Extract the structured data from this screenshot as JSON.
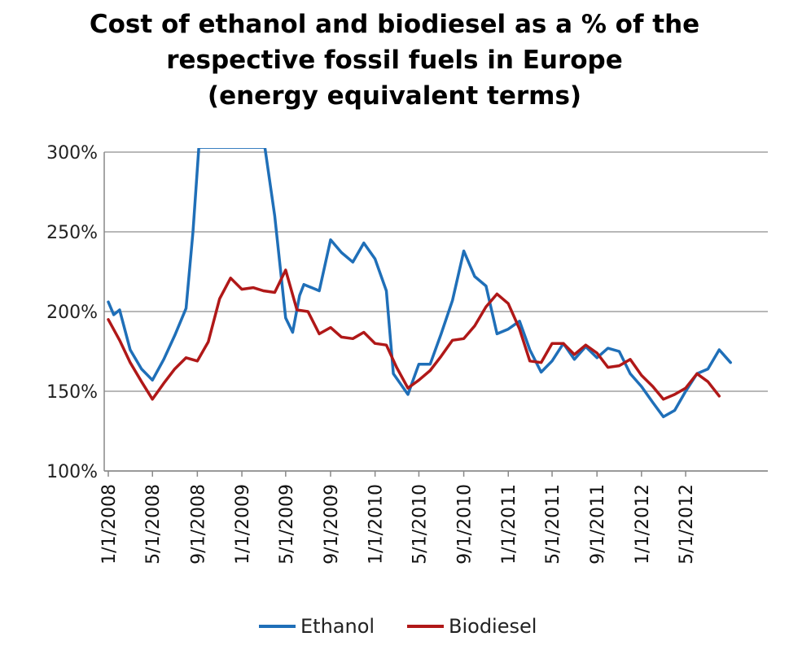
{
  "chart_data": {
    "type": "line",
    "title_lines": [
      "Cost of ethanol and biodiesel as a % of the",
      "respective fossil fuels in Europe",
      "(energy equivalent terms)"
    ],
    "xlabel": "",
    "ylabel": "",
    "ylim": [
      100,
      300
    ],
    "yticks": [
      100,
      150,
      200,
      250,
      300
    ],
    "ytick_labels": [
      "100%",
      "150%",
      "200%",
      "250%",
      "300%"
    ],
    "x_range": [
      "2008-01-01",
      "2012-12-01"
    ],
    "xticks": [
      "2008-01-01",
      "2008-05-01",
      "2008-09-01",
      "2009-01-01",
      "2009-05-01",
      "2009-09-01",
      "2010-01-01",
      "2010-05-01",
      "2010-09-01",
      "2011-01-01",
      "2011-05-01",
      "2011-09-01",
      "2012-01-01",
      "2012-05-01"
    ],
    "xtick_labels": [
      "1/1/2008",
      "5/1/2008",
      "9/1/2008",
      "1/1/2009",
      "5/1/2009",
      "9/1/2009",
      "1/1/2010",
      "5/1/2010",
      "9/1/2010",
      "1/1/2011",
      "5/1/2011",
      "9/1/2011",
      "1/1/2012",
      "5/1/2012"
    ],
    "grid": "horizontal",
    "legend_position": "bottom",
    "colors": {
      "Ethanol": "#1f6fb8",
      "Biodiesel": "#b01818",
      "grid": "#a0a0a0",
      "axis": "#888888"
    },
    "series": [
      {
        "name": "Ethanol",
        "color": "#1f6fb8",
        "points": [
          [
            "2008-01-01",
            206
          ],
          [
            "2008-01-16",
            198
          ],
          [
            "2008-02-01",
            201
          ],
          [
            "2008-03-01",
            176
          ],
          [
            "2008-04-01",
            164
          ],
          [
            "2008-05-01",
            157
          ],
          [
            "2008-06-01",
            170
          ],
          [
            "2008-07-01",
            185
          ],
          [
            "2008-08-01",
            202
          ],
          [
            "2008-08-20",
            250
          ],
          [
            "2008-09-05",
            303
          ],
          [
            "2009-03-05",
            303
          ],
          [
            "2009-04-01",
            260
          ],
          [
            "2009-05-01",
            196
          ],
          [
            "2009-05-20",
            187
          ],
          [
            "2009-06-08",
            210
          ],
          [
            "2009-06-20",
            217
          ],
          [
            "2009-08-01",
            213
          ],
          [
            "2009-09-01",
            245
          ],
          [
            "2009-10-01",
            237
          ],
          [
            "2009-11-01",
            231
          ],
          [
            "2009-12-01",
            243
          ],
          [
            "2010-01-01",
            233
          ],
          [
            "2010-02-01",
            213
          ],
          [
            "2010-02-20",
            161
          ],
          [
            "2010-04-01",
            148
          ],
          [
            "2010-05-01",
            167
          ],
          [
            "2010-06-01",
            167
          ],
          [
            "2010-07-01",
            186
          ],
          [
            "2010-08-01",
            207
          ],
          [
            "2010-09-01",
            238
          ],
          [
            "2010-10-01",
            222
          ],
          [
            "2010-11-01",
            216
          ],
          [
            "2010-12-01",
            186
          ],
          [
            "2011-01-01",
            189
          ],
          [
            "2011-02-01",
            194
          ],
          [
            "2011-03-01",
            176
          ],
          [
            "2011-04-01",
            162
          ],
          [
            "2011-05-01",
            169
          ],
          [
            "2011-06-01",
            180
          ],
          [
            "2011-07-01",
            170
          ],
          [
            "2011-08-01",
            178
          ],
          [
            "2011-09-01",
            171
          ],
          [
            "2011-10-01",
            177
          ],
          [
            "2011-11-01",
            175
          ],
          [
            "2011-12-01",
            161
          ],
          [
            "2012-01-01",
            153
          ],
          [
            "2012-02-01",
            143
          ],
          [
            "2012-03-01",
            134
          ],
          [
            "2012-04-01",
            138
          ],
          [
            "2012-05-01",
            150
          ],
          [
            "2012-06-01",
            161
          ],
          [
            "2012-07-01",
            164
          ],
          [
            "2012-08-01",
            176
          ],
          [
            "2012-09-01",
            168
          ]
        ]
      },
      {
        "name": "Biodiesel",
        "color": "#b01818",
        "points": [
          [
            "2008-01-01",
            195
          ],
          [
            "2008-02-01",
            182
          ],
          [
            "2008-03-01",
            168
          ],
          [
            "2008-04-01",
            156
          ],
          [
            "2008-05-01",
            145
          ],
          [
            "2008-06-01",
            155
          ],
          [
            "2008-07-01",
            164
          ],
          [
            "2008-08-01",
            171
          ],
          [
            "2008-09-01",
            169
          ],
          [
            "2008-10-01",
            181
          ],
          [
            "2008-11-01",
            208
          ],
          [
            "2008-12-01",
            221
          ],
          [
            "2009-01-01",
            214
          ],
          [
            "2009-02-01",
            215
          ],
          [
            "2009-03-01",
            213
          ],
          [
            "2009-04-01",
            212
          ],
          [
            "2009-05-01",
            226
          ],
          [
            "2009-06-01",
            201
          ],
          [
            "2009-07-01",
            200
          ],
          [
            "2009-08-01",
            186
          ],
          [
            "2009-09-01",
            190
          ],
          [
            "2009-10-01",
            184
          ],
          [
            "2009-11-01",
            183
          ],
          [
            "2009-12-01",
            187
          ],
          [
            "2010-01-01",
            180
          ],
          [
            "2010-02-01",
            179
          ],
          [
            "2010-03-01",
            165
          ],
          [
            "2010-04-01",
            152
          ],
          [
            "2010-05-01",
            157
          ],
          [
            "2010-06-01",
            163
          ],
          [
            "2010-07-01",
            172
          ],
          [
            "2010-08-01",
            182
          ],
          [
            "2010-09-01",
            183
          ],
          [
            "2010-10-01",
            191
          ],
          [
            "2010-11-01",
            203
          ],
          [
            "2010-12-01",
            211
          ],
          [
            "2011-01-01",
            205
          ],
          [
            "2011-02-01",
            189
          ],
          [
            "2011-03-01",
            169
          ],
          [
            "2011-04-01",
            168
          ],
          [
            "2011-05-01",
            180
          ],
          [
            "2011-06-01",
            180
          ],
          [
            "2011-07-01",
            173
          ],
          [
            "2011-08-01",
            179
          ],
          [
            "2011-09-01",
            174
          ],
          [
            "2011-10-01",
            165
          ],
          [
            "2011-11-01",
            166
          ],
          [
            "2011-12-01",
            170
          ],
          [
            "2012-01-01",
            160
          ],
          [
            "2012-02-01",
            153
          ],
          [
            "2012-03-01",
            145
          ],
          [
            "2012-04-01",
            148
          ],
          [
            "2012-05-01",
            152
          ],
          [
            "2012-06-01",
            161
          ],
          [
            "2012-07-01",
            156
          ],
          [
            "2012-08-01",
            147
          ]
        ]
      }
    ]
  }
}
